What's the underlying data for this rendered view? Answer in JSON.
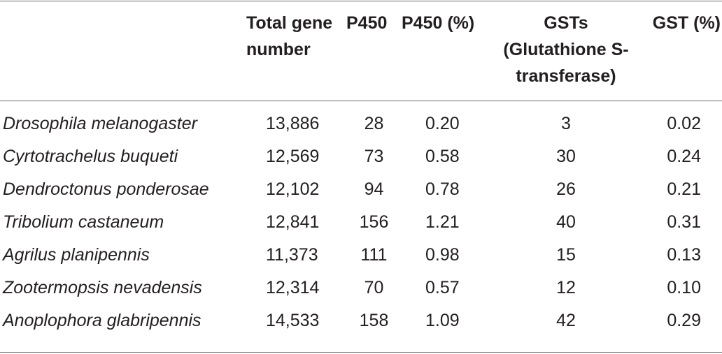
{
  "table": {
    "headers": {
      "species": "",
      "total": "Total gene number",
      "p450": "P450",
      "p450_pct": "P450 (%)",
      "gsts": "GSTs (Glutathione S-transferase)",
      "gst_pct": "GST (%)"
    },
    "rows": [
      {
        "species": "Drosophila melanogaster",
        "total": "13,886",
        "p450": "28",
        "p450_pct": "0.20",
        "gsts": "3",
        "gst_pct": "0.02"
      },
      {
        "species": "Cyrtotrachelus buqueti",
        "total": "12,569",
        "p450": "73",
        "p450_pct": "0.58",
        "gsts": "30",
        "gst_pct": "0.24"
      },
      {
        "species": "Dendroctonus ponderosae",
        "total": "12,102",
        "p450": "94",
        "p450_pct": "0.78",
        "gsts": "26",
        "gst_pct": "0.21"
      },
      {
        "species": "Tribolium castaneum",
        "total": "12,841",
        "p450": "156",
        "p450_pct": "1.21",
        "gsts": "40",
        "gst_pct": "0.31"
      },
      {
        "species": "Agrilus planipennis",
        "total": "11,373",
        "p450": "111",
        "p450_pct": "0.98",
        "gsts": "15",
        "gst_pct": "0.13"
      },
      {
        "species": "Zootermopsis nevadensis",
        "total": "12,314",
        "p450": "70",
        "p450_pct": "0.57",
        "gsts": "12",
        "gst_pct": "0.10"
      },
      {
        "species": "Anoplophora glabripennis",
        "total": "14,533",
        "p450": "158",
        "p450_pct": "1.09",
        "gsts": "42",
        "gst_pct": "0.29"
      }
    ]
  }
}
